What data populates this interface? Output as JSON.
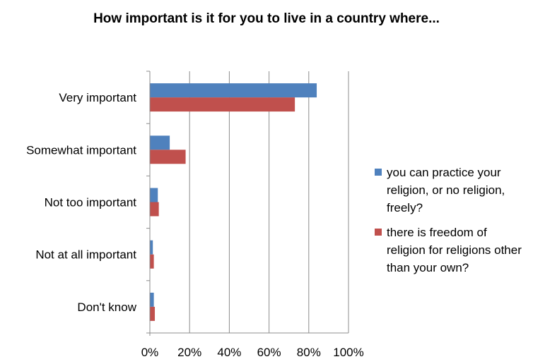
{
  "chart_data": {
    "type": "bar",
    "orientation": "horizontal",
    "title": "How important is it for you to live in a country where...",
    "categories": [
      "Very important",
      "Somewhat important",
      "Not too important",
      "Not at all important",
      "Don't know"
    ],
    "series": [
      {
        "name": "you can practice your religion, or no religion, freely?",
        "color": "#4f81bd",
        "values": [
          84,
          10,
          4,
          1.5,
          2
        ]
      },
      {
        "name": "there is freedom of religion for religions other than your own?",
        "color": "#c0504d",
        "values": [
          73,
          18,
          4.5,
          2,
          2.5
        ]
      }
    ],
    "xlim": [
      0,
      100
    ],
    "x_ticks": [
      "0%",
      "20%",
      "40%",
      "60%",
      "80%",
      "100%"
    ],
    "grid": true,
    "legend_position": "right"
  }
}
